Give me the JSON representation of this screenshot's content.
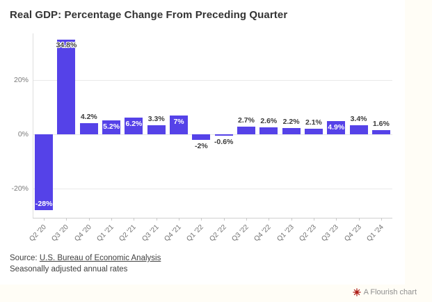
{
  "page": {
    "title": "Real GDP: Percentage Change From Preceding Quarter",
    "source_prefix": "Source: ",
    "source_link": "U.S. Bureau of Economic Analysis",
    "source_note": "Seasonally adjusted annual rates",
    "footer_label": "A Flourish chart"
  },
  "colors": {
    "bar": "#5542e8",
    "title_text": "#333333",
    "axis_text": "#7a7a7a",
    "value_label_dark": "#3b3b3b",
    "value_label_light": "#ffffff",
    "gridline": "#e9e9e9",
    "footer_icon_red": "#b0231c",
    "card_bg": "#ffffff",
    "page_bg": "#fffdf6"
  },
  "chart_data": {
    "type": "bar",
    "title": "Real GDP: Percentage Change From Preceding Quarter",
    "categories": [
      "Q2 '20",
      "Q3 '20",
      "Q4 '20",
      "Q1 '21",
      "Q2 '21",
      "Q3 '21",
      "Q4 '21",
      "Q1 '22",
      "Q2 '22",
      "Q3 '22",
      "Q4 '22",
      "Q1 '23",
      "Q2 '23",
      "Q3 '23",
      "Q4 '23",
      "Q1 '24"
    ],
    "values": [
      -28,
      34.8,
      4.2,
      5.2,
      6.2,
      3.3,
      7,
      -2,
      -0.6,
      2.7,
      2.6,
      2.2,
      2.1,
      4.9,
      3.4,
      1.6
    ],
    "labels": [
      "-28%",
      "34.8%",
      "4.2%",
      "5.2%",
      "6.2%",
      "3.3%",
      "7%",
      "-2%",
      "-0.6%",
      "2.7%",
      "2.6%",
      "2.2%",
      "2.1%",
      "4.9%",
      "3.4%",
      "1.6%"
    ],
    "label_placement": [
      "inside-bottom",
      "straddle-top",
      "outside-top",
      "inside-top",
      "inside-top",
      "outside-top",
      "inside-top",
      "outside-bottom",
      "outside-bottom",
      "outside-top",
      "outside-top",
      "outside-top",
      "outside-top",
      "inside-top",
      "outside-top",
      "outside-top"
    ],
    "y_ticks": [
      {
        "label": "20%",
        "value": 20
      },
      {
        "label": "0%",
        "value": 0
      },
      {
        "label": "-20%",
        "value": -20
      }
    ],
    "ylim": [
      -30.8,
      37.2
    ],
    "xlabel": "",
    "ylabel": "",
    "grid": true,
    "legend": "none"
  }
}
